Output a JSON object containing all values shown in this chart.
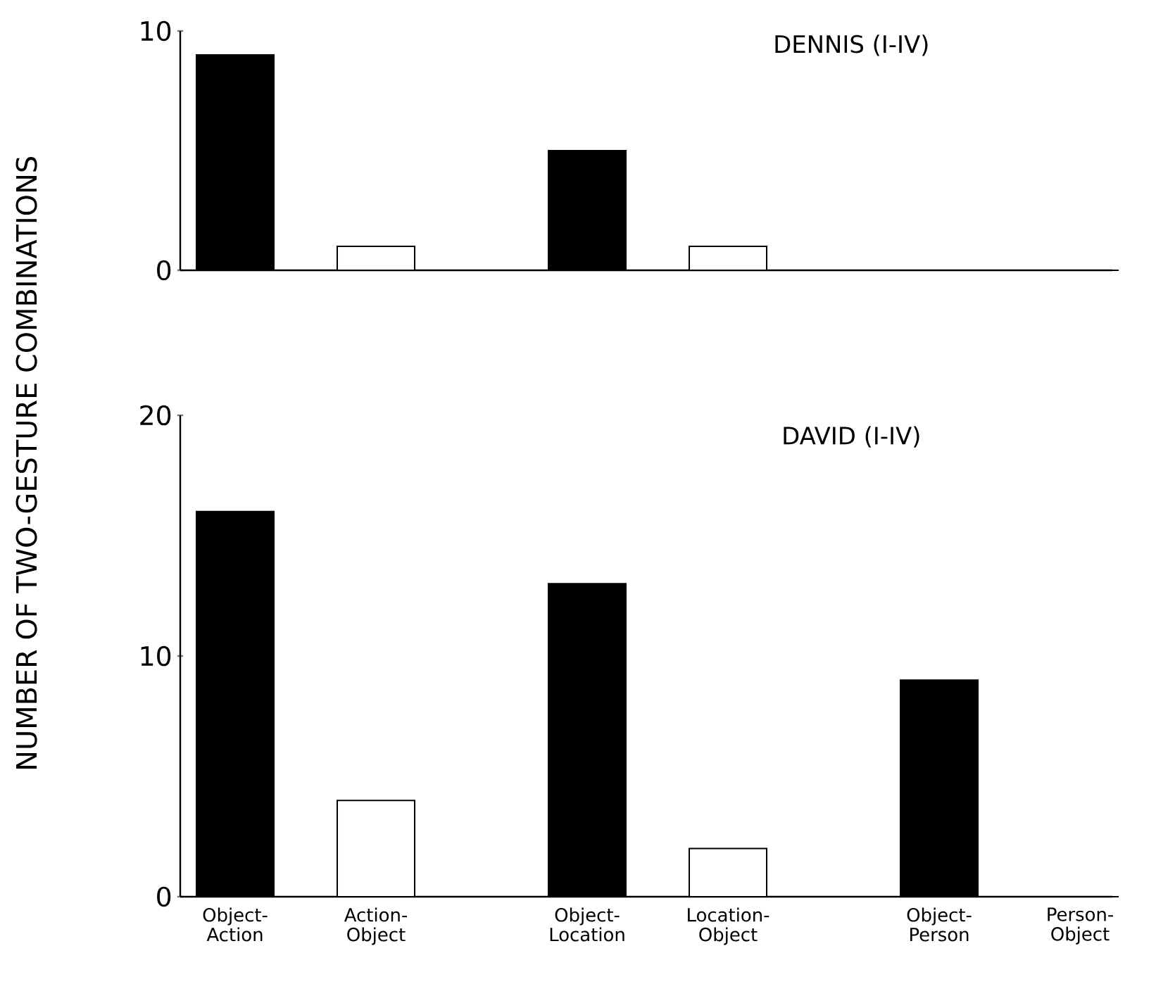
{
  "chart_data": [
    {
      "type": "bar",
      "title": "DENNIS (I-IV)",
      "categories": [
        null,
        null,
        null,
        null,
        null,
        null
      ],
      "values": [
        9,
        1,
        5,
        1,
        0,
        0
      ],
      "colors": [
        "#000000",
        "#ffffff",
        "#000000",
        "#ffffff",
        "#000000",
        "#ffffff"
      ],
      "ylim": [
        0,
        10
      ],
      "yticks": [
        0,
        10
      ]
    },
    {
      "type": "bar",
      "title": "DAVID (I-IV)",
      "ylabel": "NUMBER OF TWO-GESTURE COMBINATIONS",
      "categories": [
        "Object- Action",
        "Action- Object",
        "Object- Location",
        "Location- Object",
        "Object- Person",
        "Person- Object"
      ],
      "values": [
        16,
        4,
        13,
        2,
        9,
        0
      ],
      "colors": [
        "#000000",
        "#ffffff",
        "#000000",
        "#ffffff",
        "#000000",
        "#ffffff"
      ],
      "ylim": [
        0,
        20
      ],
      "yticks": [
        0,
        10,
        20
      ]
    }
  ]
}
